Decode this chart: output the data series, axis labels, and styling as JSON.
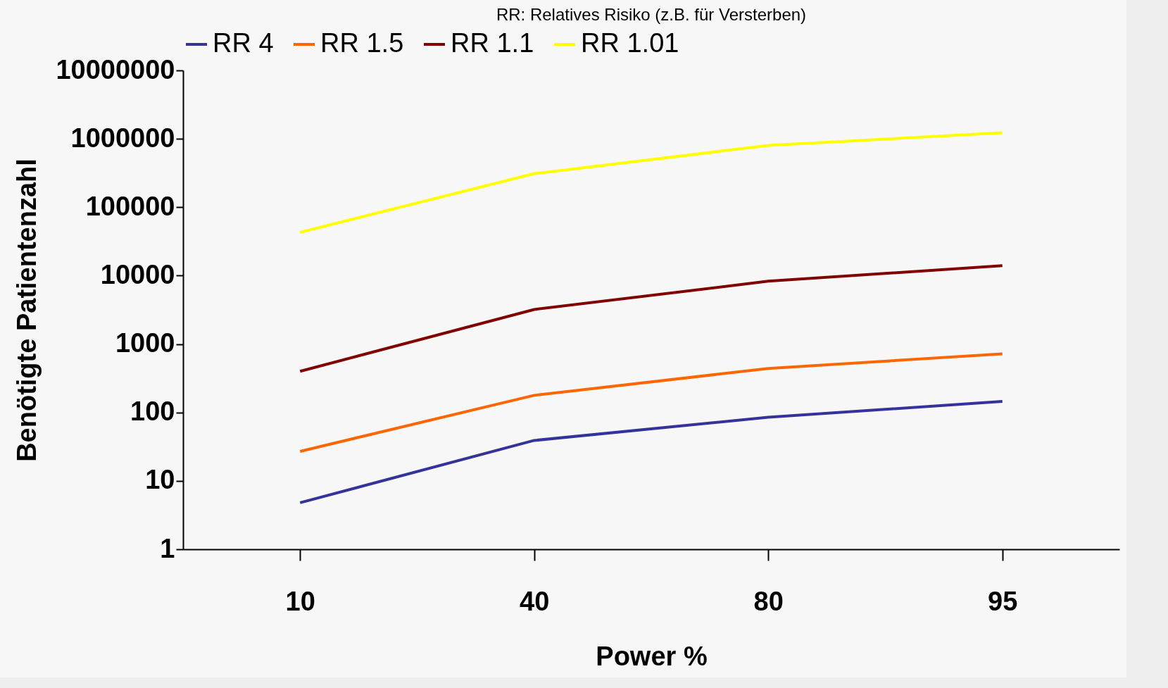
{
  "chart_data": {
    "type": "line",
    "subtitle": "RR: Relatives Risiko (z.B. für Versterben)",
    "xlabel": "Power %",
    "ylabel": "Benötigte Patientenzahl",
    "categories": [
      "10",
      "40",
      "80",
      "95"
    ],
    "series": [
      {
        "name": "RR 4",
        "color": "#333399",
        "values": [
          4.8,
          39,
          85,
          145
        ]
      },
      {
        "name": "RR 1.5",
        "color": "#ff6600",
        "values": [
          27,
          178,
          440,
          720
        ]
      },
      {
        "name": "RR 1.1",
        "color": "#800000",
        "values": [
          400,
          3200,
          8300,
          14000
        ]
      },
      {
        "name": "RR 1.01",
        "color": "#ffff00",
        "values": [
          43000,
          310000,
          800000,
          1230000
        ]
      }
    ],
    "log": true,
    "ylim": [
      1,
      10000000
    ],
    "yticks": [
      1,
      10,
      100,
      1000,
      10000,
      100000,
      1000000,
      10000000
    ],
    "grid": false,
    "legend": "top",
    "marker": "none",
    "line_style": "solid"
  }
}
